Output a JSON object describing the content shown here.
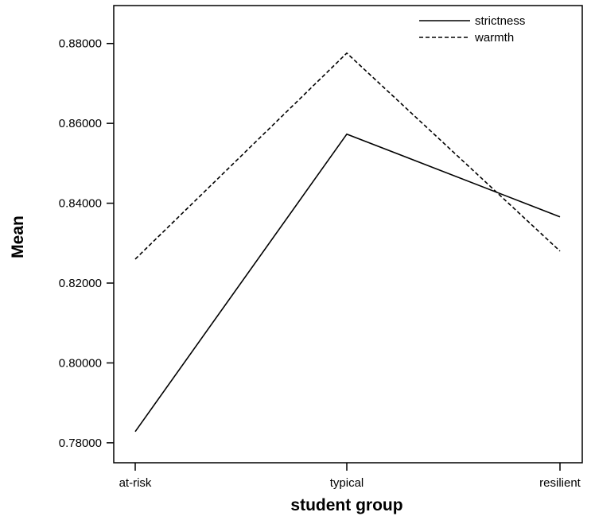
{
  "chart_data": {
    "type": "line",
    "categories": [
      "at-risk",
      "typical",
      "resilient"
    ],
    "series": [
      {
        "name": "strictness",
        "values": [
          0.7828,
          0.8573,
          0.8366
        ],
        "style": "solid",
        "color": "#000000"
      },
      {
        "name": "warmth",
        "values": [
          0.826,
          0.8776,
          0.828
        ],
        "style": "dashed",
        "color": "#000000"
      }
    ],
    "xlabel": "student group",
    "ylabel": "Mean",
    "ylim": [
      0.775,
      0.8895
    ],
    "yticks": [
      0.78,
      0.8,
      0.82,
      0.84,
      0.86,
      0.88
    ],
    "ytick_labels": [
      "0.78000",
      "0.80000",
      "0.82000",
      "0.84000",
      "0.86000",
      "0.88000"
    ],
    "legend_position": "top-right",
    "grid": false
  }
}
